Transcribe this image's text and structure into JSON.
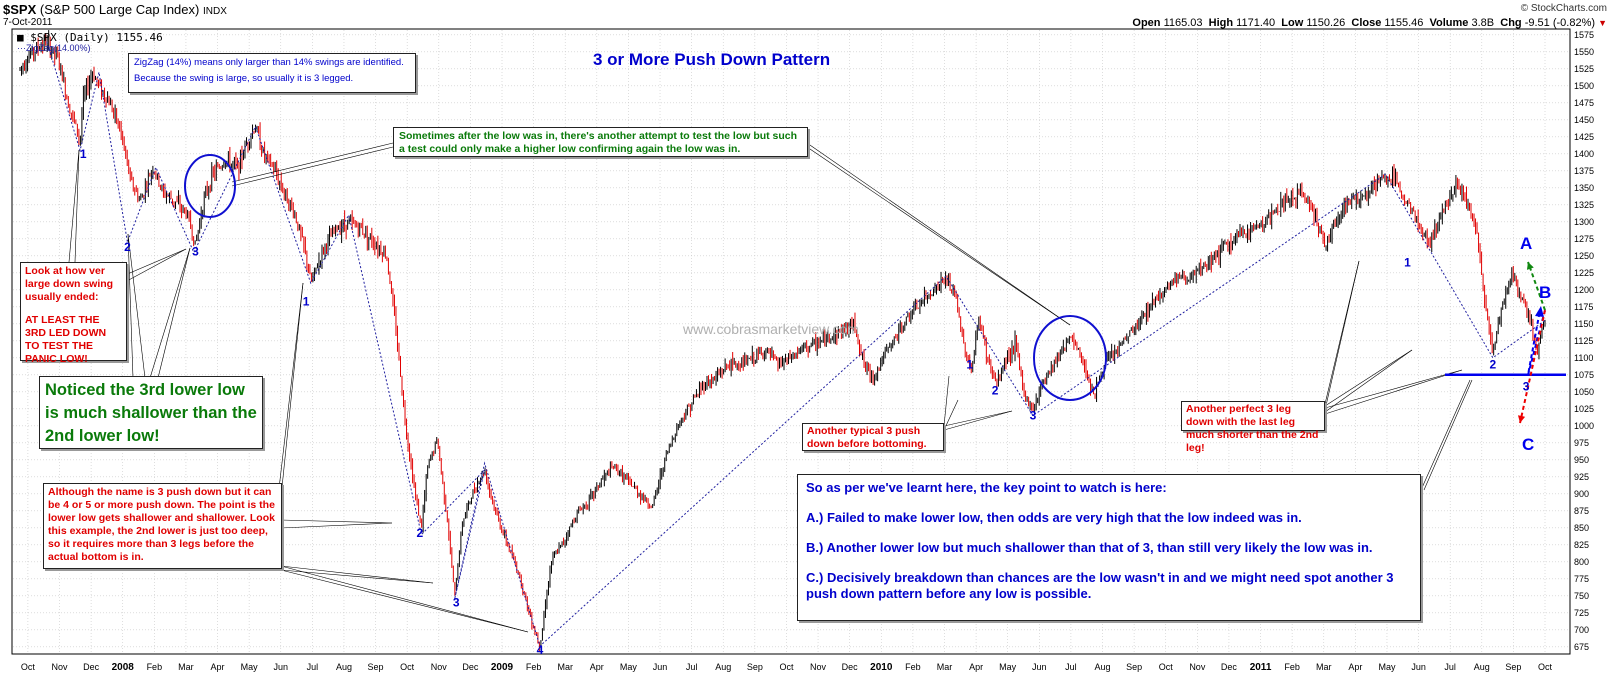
{
  "header": {
    "symbol": "$SPX",
    "name": "(S&P 500 Large Cap Index)",
    "exchange": "INDX",
    "date": "7-Oct-2011",
    "open_label": "Open",
    "open": "1165.03",
    "high_label": "High",
    "high": "1171.40",
    "low_label": "Low",
    "low": "1150.26",
    "close_label": "Close",
    "close": "1155.46",
    "volume_label": "Volume",
    "volume": "3.8B",
    "chg_label": "Chg",
    "chg": "-9.51 (-0.82%)",
    "chg_arrow": "▼",
    "brand": "© StockCharts.com"
  },
  "legend": {
    "price": "■ $SPX (Daily) 1155.46",
    "zigzag": "ZigZag(14.00%)"
  },
  "watermark": "www.cobrasmarketview.com",
  "annotations": {
    "title": "3 or More Push Down Pattern",
    "zigzag_note_1": "ZigZag (14%) means only larger than 14% swings are identified.",
    "zigzag_note_2": "Because the swing is large, so usually it is 3 legged.",
    "retest_note": "Sometimes after the low was in, there's another attempt to test the low but such a test could only make a higher low confirming again the low was in.",
    "look_note_1": "Look at how ver large down swing usually ended:",
    "look_note_2": "AT LEAST THE 3RD LED DOWN TO TEST THE PANIC LOW!",
    "shallow_note": "Noticed the 3rd lower low is much shallower than the 2nd lower low!",
    "more_push_note": "Although the name is 3 push down but it can be 4 or 5 or more push down. The point is the lower low gets shallower and shallower. Look this example, the 2nd lower is just too deep, so it requires more than 3 legs before the actual bottom is in.",
    "typical_note": "Another typical 3 push down before bottoming.",
    "perfect_note": "Another perfect 3 leg down with the last leg much shorter than the 2nd leg!",
    "key_point_title": "So as per we've learnt here, the key point to watch is here:",
    "key_a": "A.) Failed to make lower low, then odds are very high that the low indeed was in.",
    "key_b": "B.) Another lower low but much shallower than that of 3, than still very likely the low was in.",
    "key_c": "C.) Decisively breakdown than chances are the low wasn't in and we might need spot another 3 push down pattern before any low is possible.",
    "scenario_a": "A",
    "scenario_b": "B",
    "scenario_c": "C"
  },
  "colors": {
    "up_bar": "#000000",
    "down_bar": "#e00000",
    "zigzag": "#2020a0",
    "circle": "#1010d0",
    "support": "#0000ee",
    "scenario_a": "#118811",
    "scenario_b": "#0000ee",
    "scenario_c": "#ee0000",
    "grid": "#c8c8c8"
  },
  "chart_data": {
    "type": "line",
    "title": "3 or More Push Down Pattern",
    "subtitle": "$SPX (S&P 500 Large Cap Index) Daily",
    "ylabel": "",
    "xlabel": "",
    "ylim": [
      660,
      1585
    ],
    "y_ticks": [
      675,
      700,
      725,
      750,
      775,
      800,
      825,
      850,
      875,
      900,
      925,
      950,
      975,
      1000,
      1025,
      1050,
      1075,
      1100,
      1125,
      1150,
      1175,
      1200,
      1225,
      1250,
      1275,
      1300,
      1325,
      1350,
      1375,
      1400,
      1425,
      1450,
      1475,
      1500,
      1525,
      1550,
      1575
    ],
    "x_range": [
      0,
      48.25
    ],
    "x_ticks": [
      {
        "label": "Oct",
        "t": 0.25,
        "bold": false
      },
      {
        "label": "Nov",
        "t": 1.25,
        "bold": false
      },
      {
        "label": "Dec",
        "t": 2.25,
        "bold": false
      },
      {
        "label": "2008",
        "t": 3.25,
        "bold": true
      },
      {
        "label": "Feb",
        "t": 4.25,
        "bold": false
      },
      {
        "label": "Mar",
        "t": 5.25,
        "bold": false
      },
      {
        "label": "Apr",
        "t": 6.25,
        "bold": false
      },
      {
        "label": "May",
        "t": 7.25,
        "bold": false
      },
      {
        "label": "Jun",
        "t": 8.25,
        "bold": false
      },
      {
        "label": "Jul",
        "t": 9.25,
        "bold": false
      },
      {
        "label": "Aug",
        "t": 10.25,
        "bold": false
      },
      {
        "label": "Sep",
        "t": 11.25,
        "bold": false
      },
      {
        "label": "Oct",
        "t": 12.25,
        "bold": false
      },
      {
        "label": "Nov",
        "t": 13.25,
        "bold": false
      },
      {
        "label": "Dec",
        "t": 14.25,
        "bold": false
      },
      {
        "label": "2009",
        "t": 15.25,
        "bold": true
      },
      {
        "label": "Feb",
        "t": 16.25,
        "bold": false
      },
      {
        "label": "Mar",
        "t": 17.25,
        "bold": false
      },
      {
        "label": "Apr",
        "t": 18.25,
        "bold": false
      },
      {
        "label": "May",
        "t": 19.25,
        "bold": false
      },
      {
        "label": "Jun",
        "t": 20.25,
        "bold": false
      },
      {
        "label": "Jul",
        "t": 21.25,
        "bold": false
      },
      {
        "label": "Aug",
        "t": 22.25,
        "bold": false
      },
      {
        "label": "Sep",
        "t": 23.25,
        "bold": false
      },
      {
        "label": "Oct",
        "t": 24.25,
        "bold": false
      },
      {
        "label": "Nov",
        "t": 25.25,
        "bold": false
      },
      {
        "label": "Dec",
        "t": 26.25,
        "bold": false
      },
      {
        "label": "2010",
        "t": 27.25,
        "bold": true
      },
      {
        "label": "Feb",
        "t": 28.25,
        "bold": false
      },
      {
        "label": "Mar",
        "t": 29.25,
        "bold": false
      },
      {
        "label": "Apr",
        "t": 30.25,
        "bold": false
      },
      {
        "label": "May",
        "t": 31.25,
        "bold": false
      },
      {
        "label": "Jun",
        "t": 32.25,
        "bold": false
      },
      {
        "label": "Jul",
        "t": 33.25,
        "bold": false
      },
      {
        "label": "Aug",
        "t": 34.25,
        "bold": false
      },
      {
        "label": "Sep",
        "t": 35.25,
        "bold": false
      },
      {
        "label": "Oct",
        "t": 36.25,
        "bold": false
      },
      {
        "label": "Nov",
        "t": 37.25,
        "bold": false
      },
      {
        "label": "Dec",
        "t": 38.25,
        "bold": false
      },
      {
        "label": "2011",
        "t": 39.25,
        "bold": true
      },
      {
        "label": "Feb",
        "t": 40.25,
        "bold": false
      },
      {
        "label": "Mar",
        "t": 41.25,
        "bold": false
      },
      {
        "label": "Apr",
        "t": 42.25,
        "bold": false
      },
      {
        "label": "May",
        "t": 43.25,
        "bold": false
      },
      {
        "label": "Jun",
        "t": 44.25,
        "bold": false
      },
      {
        "label": "Jul",
        "t": 45.25,
        "bold": false
      },
      {
        "label": "Aug",
        "t": 46.25,
        "bold": false
      },
      {
        "label": "Sep",
        "t": 47.25,
        "bold": false
      },
      {
        "label": "Oct",
        "t": 48.25,
        "bold": false
      }
    ],
    "price_path": [
      [
        0,
        1525
      ],
      [
        0.3,
        1545
      ],
      [
        0.8,
        1565
      ],
      [
        1.2,
        1540
      ],
      [
        1.5,
        1480
      ],
      [
        1.9,
        1420
      ],
      [
        2.0,
        1480
      ],
      [
        2.3,
        1520
      ],
      [
        2.5,
        1500
      ],
      [
        2.9,
        1470
      ],
      [
        3.2,
        1430
      ],
      [
        3.5,
        1360
      ],
      [
        3.8,
        1330
      ],
      [
        4.2,
        1380
      ],
      [
        4.5,
        1345
      ],
      [
        4.9,
        1330
      ],
      [
        5.3,
        1310
      ],
      [
        5.55,
        1265
      ],
      [
        5.8,
        1330
      ],
      [
        6.1,
        1370
      ],
      [
        6.5,
        1390
      ],
      [
        6.9,
        1380
      ],
      [
        7.2,
        1420
      ],
      [
        7.45,
        1440
      ],
      [
        7.7,
        1400
      ],
      [
        8.0,
        1380
      ],
      [
        8.4,
        1340
      ],
      [
        8.7,
        1310
      ],
      [
        9.0,
        1260
      ],
      [
        9.2,
        1210
      ],
      [
        9.6,
        1260
      ],
      [
        10.0,
        1290
      ],
      [
        10.4,
        1300
      ],
      [
        10.8,
        1290
      ],
      [
        11.2,
        1270
      ],
      [
        11.6,
        1250
      ],
      [
        11.9,
        1140
      ],
      [
        12.2,
        1000
      ],
      [
        12.5,
        900
      ],
      [
        12.7,
        850
      ],
      [
        12.9,
        940
      ],
      [
        13.2,
        980
      ],
      [
        13.5,
        870
      ],
      [
        13.75,
        750
      ],
      [
        14.0,
        860
      ],
      [
        14.4,
        910
      ],
      [
        14.7,
        935
      ],
      [
        15.0,
        880
      ],
      [
        15.3,
        840
      ],
      [
        15.8,
        780
      ],
      [
        16.2,
        710
      ],
      [
        16.45,
        676
      ],
      [
        16.8,
        800
      ],
      [
        17.2,
        830
      ],
      [
        17.6,
        870
      ],
      [
        18.0,
        890
      ],
      [
        18.4,
        920
      ],
      [
        18.8,
        940
      ],
      [
        19.2,
        920
      ],
      [
        19.6,
        900
      ],
      [
        20.0,
        880
      ],
      [
        20.4,
        950
      ],
      [
        20.8,
        1000
      ],
      [
        21.2,
        1030
      ],
      [
        21.6,
        1060
      ],
      [
        22.0,
        1070
      ],
      [
        22.4,
        1090
      ],
      [
        22.8,
        1090
      ],
      [
        23.2,
        1100
      ],
      [
        23.6,
        1110
      ],
      [
        24.0,
        1090
      ],
      [
        24.4,
        1100
      ],
      [
        24.8,
        1115
      ],
      [
        25.2,
        1120
      ],
      [
        25.6,
        1130
      ],
      [
        26.0,
        1140
      ],
      [
        26.4,
        1150
      ],
      [
        26.7,
        1090
      ],
      [
        27.0,
        1070
      ],
      [
        27.3,
        1100
      ],
      [
        27.7,
        1130
      ],
      [
        28.1,
        1160
      ],
      [
        28.5,
        1180
      ],
      [
        28.9,
        1200
      ],
      [
        29.3,
        1215
      ],
      [
        29.6,
        1190
      ],
      [
        29.85,
        1120
      ],
      [
        30.1,
        1080
      ],
      [
        30.35,
        1160
      ],
      [
        30.6,
        1100
      ],
      [
        30.9,
        1060
      ],
      [
        31.2,
        1100
      ],
      [
        31.5,
        1120
      ],
      [
        31.8,
        1040
      ],
      [
        32.05,
        1025
      ],
      [
        32.4,
        1070
      ],
      [
        32.8,
        1100
      ],
      [
        33.2,
        1130
      ],
      [
        33.5,
        1110
      ],
      [
        33.8,
        1070
      ],
      [
        34.0,
        1045
      ],
      [
        34.3,
        1090
      ],
      [
        34.7,
        1110
      ],
      [
        35.0,
        1130
      ],
      [
        35.4,
        1150
      ],
      [
        35.8,
        1180
      ],
      [
        36.2,
        1200
      ],
      [
        36.6,
        1220
      ],
      [
        37.0,
        1215
      ],
      [
        37.4,
        1230
      ],
      [
        37.8,
        1250
      ],
      [
        38.2,
        1265
      ],
      [
        38.6,
        1280
      ],
      [
        39.0,
        1290
      ],
      [
        39.4,
        1300
      ],
      [
        39.8,
        1320
      ],
      [
        40.2,
        1335
      ],
      [
        40.6,
        1340
      ],
      [
        41.0,
        1310
      ],
      [
        41.3,
        1260
      ],
      [
        41.6,
        1300
      ],
      [
        42.0,
        1330
      ],
      [
        42.4,
        1335
      ],
      [
        42.8,
        1350
      ],
      [
        43.2,
        1365
      ],
      [
        43.5,
        1360
      ],
      [
        43.9,
        1330
      ],
      [
        44.3,
        1290
      ],
      [
        44.6,
        1270
      ],
      [
        44.9,
        1300
      ],
      [
        45.2,
        1340
      ],
      [
        45.5,
        1355
      ],
      [
        45.8,
        1330
      ],
      [
        46.1,
        1280
      ],
      [
        46.35,
        1180
      ],
      [
        46.6,
        1110
      ],
      [
        46.9,
        1180
      ],
      [
        47.2,
        1220
      ],
      [
        47.5,
        1190
      ],
      [
        47.8,
        1150
      ],
      [
        48.0,
        1110
      ],
      [
        48.25,
        1155.46
      ]
    ],
    "zigzag_path": [
      [
        0.85,
        1565
      ],
      [
        1.9,
        1405
      ],
      [
        2.5,
        1520
      ],
      [
        3.4,
        1270
      ],
      [
        4.3,
        1380
      ],
      [
        5.5,
        1255
      ],
      [
        7.45,
        1440
      ],
      [
        9.2,
        1210
      ],
      [
        10.4,
        1310
      ],
      [
        12.7,
        840
      ],
      [
        14.7,
        935
      ],
      [
        13.75,
        745
      ],
      [
        14.7,
        945
      ],
      [
        16.45,
        676
      ],
      [
        29.3,
        1220
      ],
      [
        32.05,
        1015
      ],
      [
        43.2,
        1370
      ],
      [
        46.6,
        1100
      ],
      [
        48.25,
        1155
      ]
    ],
    "wave_labels": [
      {
        "label": "1",
        "t": 2.0,
        "v": 1400
      },
      {
        "label": "2",
        "t": 3.4,
        "v": 1263
      },
      {
        "label": "3",
        "t": 5.55,
        "v": 1256
      },
      {
        "label": "1",
        "t": 9.05,
        "v": 1183
      },
      {
        "label": "2",
        "t": 12.65,
        "v": 842
      },
      {
        "label": "3",
        "t": 13.8,
        "v": 740
      },
      {
        "label": "4",
        "t": 16.45,
        "v": 670
      },
      {
        "label": "1",
        "t": 30.05,
        "v": 1090
      },
      {
        "label": "2",
        "t": 30.85,
        "v": 1052
      },
      {
        "label": "3",
        "t": 32.05,
        "v": 1015
      },
      {
        "label": "1",
        "t": 43.9,
        "v": 1240
      },
      {
        "label": "2",
        "t": 46.6,
        "v": 1090
      },
      {
        "label": "3",
        "t": 47.65,
        "v": 1058
      }
    ],
    "support_level": 1075
  }
}
